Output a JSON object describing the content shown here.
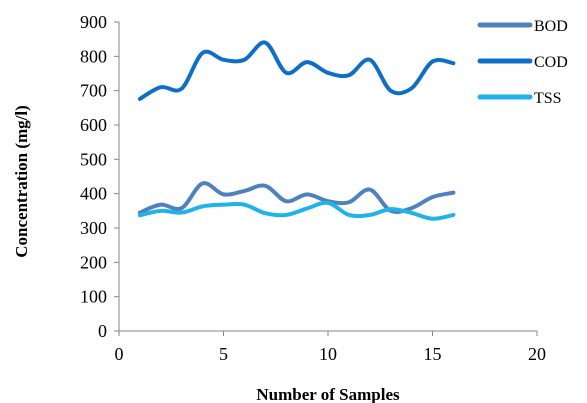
{
  "chart_data": {
    "type": "line",
    "title": "",
    "xlabel": "Number of Samples",
    "ylabel": "Concentration  (mg/l)",
    "xlim": [
      0,
      20
    ],
    "ylim": [
      0,
      900
    ],
    "x_ticks": [
      0,
      5,
      10,
      15,
      20
    ],
    "y_ticks": [
      0,
      100,
      200,
      300,
      400,
      500,
      600,
      700,
      800,
      900
    ],
    "x_tick_labels": [
      "0",
      "5",
      "10",
      "15",
      "20"
    ],
    "y_tick_labels": [
      "0",
      "100",
      "200",
      "300",
      "400",
      "500",
      "600",
      "700",
      "800",
      "900"
    ],
    "grid": false,
    "legend_position": "right",
    "x": [
      1,
      2,
      3,
      4,
      5,
      6,
      7,
      8,
      9,
      10,
      11,
      12,
      13,
      14,
      15,
      16
    ],
    "series": [
      {
        "name": "BOD",
        "color": "#4F81BD",
        "values": [
          345,
          368,
          358,
          430,
          398,
          408,
          423,
          378,
          398,
          378,
          375,
          412,
          350,
          358,
          390,
          403
        ]
      },
      {
        "name": "COD",
        "color": "#0F6FC6",
        "values": [
          676,
          710,
          706,
          810,
          790,
          790,
          840,
          752,
          783,
          752,
          745,
          790,
          700,
          707,
          785,
          780
        ]
      },
      {
        "name": "TSS",
        "color": "#1FB3EA",
        "values": [
          337,
          350,
          345,
          363,
          368,
          368,
          343,
          338,
          357,
          373,
          338,
          338,
          355,
          344,
          327,
          338
        ]
      }
    ]
  }
}
